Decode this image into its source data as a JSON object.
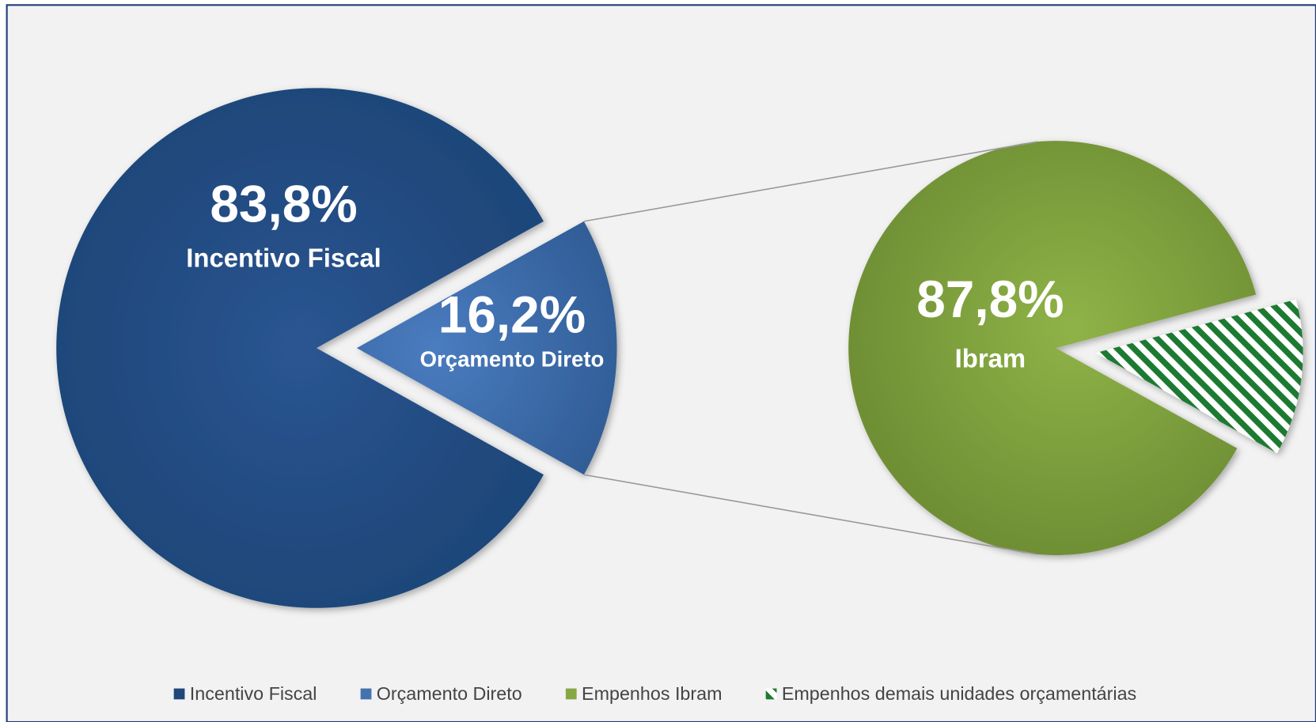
{
  "chart_data": [
    {
      "type": "pie",
      "categories": [
        "Incentivo Fiscal",
        "Orçamento Direto"
      ],
      "values": [
        83.8,
        16.2
      ],
      "value_labels": [
        "83,8%",
        "16,2%"
      ],
      "slice_names": [
        "Incentivo Fiscal",
        "Orçamento Direto"
      ],
      "colors": [
        "#1f477a",
        "#4472b0"
      ]
    },
    {
      "type": "pie",
      "categories": [
        "Empenhos Ibram",
        "Empenhos demais unidades orçamentárias"
      ],
      "values": [
        87.8,
        12.2
      ],
      "value_labels": [
        "87,8%",
        null
      ],
      "slice_names": [
        "Ibram",
        null
      ],
      "colors": [
        "#86a844",
        "#1e7a30"
      ],
      "hatched": [
        false,
        true
      ]
    }
  ]
}
